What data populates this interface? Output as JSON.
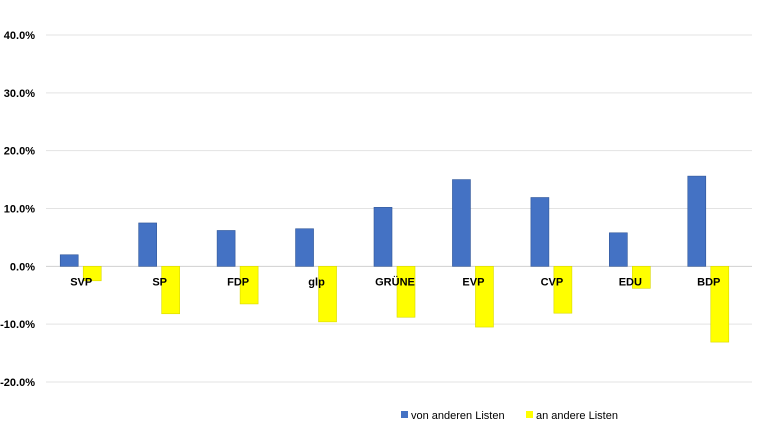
{
  "chart_data": {
    "type": "bar",
    "categories": [
      "SVP",
      "SP",
      "FDP",
      "glp",
      "GRÜNE",
      "EVP",
      "CVP",
      "EDU",
      "BDP"
    ],
    "series": [
      {
        "name": "von anderen Listen",
        "color": "#4472c4",
        "values": [
          2.0,
          7.5,
          6.2,
          6.5,
          10.2,
          15.0,
          11.9,
          5.8,
          15.6
        ]
      },
      {
        "name": "an andere Listen",
        "color": "#ffff00",
        "values": [
          -2.5,
          -8.2,
          -6.5,
          -9.6,
          -8.8,
          -10.5,
          -8.1,
          -3.8,
          -13.1
        ]
      }
    ],
    "ylim": [
      -20,
      40
    ],
    "yticks": [
      40,
      30,
      20,
      10,
      0,
      -10,
      -20
    ],
    "ytick_labels": [
      "40.0%",
      "30.0%",
      "20.0%",
      "10.0%",
      "0.0%",
      "-10.0%",
      "-20.0%"
    ],
    "grid": true,
    "legend_position": "bottom"
  }
}
